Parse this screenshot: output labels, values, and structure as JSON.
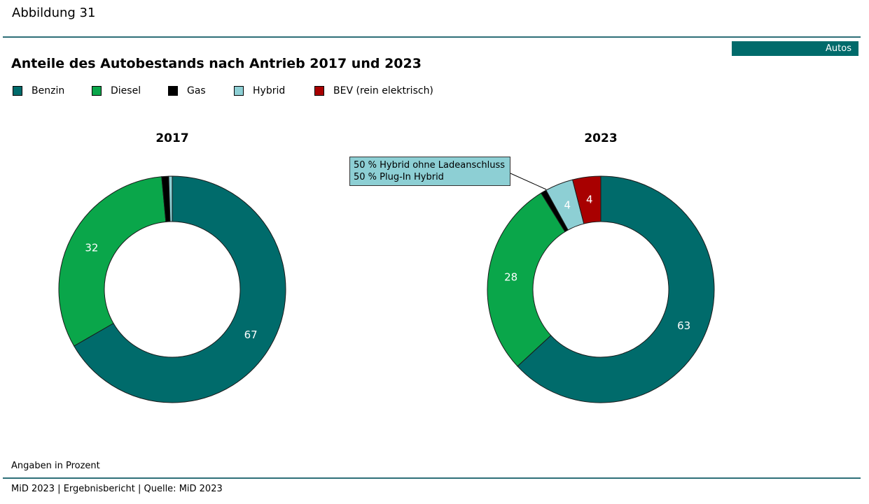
{
  "figure_label": "Abbildung 31",
  "badge": "Autos",
  "title": "Anteile des Autobestands nach Antrieb 2017 und 2023",
  "legend": [
    {
      "label": "Benzin",
      "color": "#006b6b"
    },
    {
      "label": "Diesel",
      "color": "#0aa64a"
    },
    {
      "label": "Gas",
      "color": "#000000"
    },
    {
      "label": "Hybrid",
      "color": "#8dcfd4"
    },
    {
      "label": "BEV (rein elektrisch)",
      "color": "#a80000"
    }
  ],
  "callout": {
    "line1": "50 % Hybrid ohne Ladeanschluss",
    "line2": "50 % Plug-In Hybrid"
  },
  "note": "Angaben in Prozent",
  "footer": "MiD 2023 | Ergebnisbericht | Quelle: MiD 2023",
  "chart_data": [
    {
      "type": "pie",
      "title": "2017",
      "categories": [
        "Benzin",
        "Diesel",
        "Gas",
        "Hybrid",
        "BEV (rein elektrisch)"
      ],
      "values": [
        67,
        32,
        1,
        0.5,
        0
      ],
      "labels": [
        "67",
        "32",
        "",
        "",
        ""
      ]
    },
    {
      "type": "pie",
      "title": "2023",
      "categories": [
        "Benzin",
        "Diesel",
        "Gas",
        "Hybrid",
        "BEV (rein elektrisch)"
      ],
      "values": [
        63,
        28,
        0.8,
        4,
        4
      ],
      "labels": [
        "63",
        "28",
        "",
        "4",
        "4"
      ]
    }
  ]
}
